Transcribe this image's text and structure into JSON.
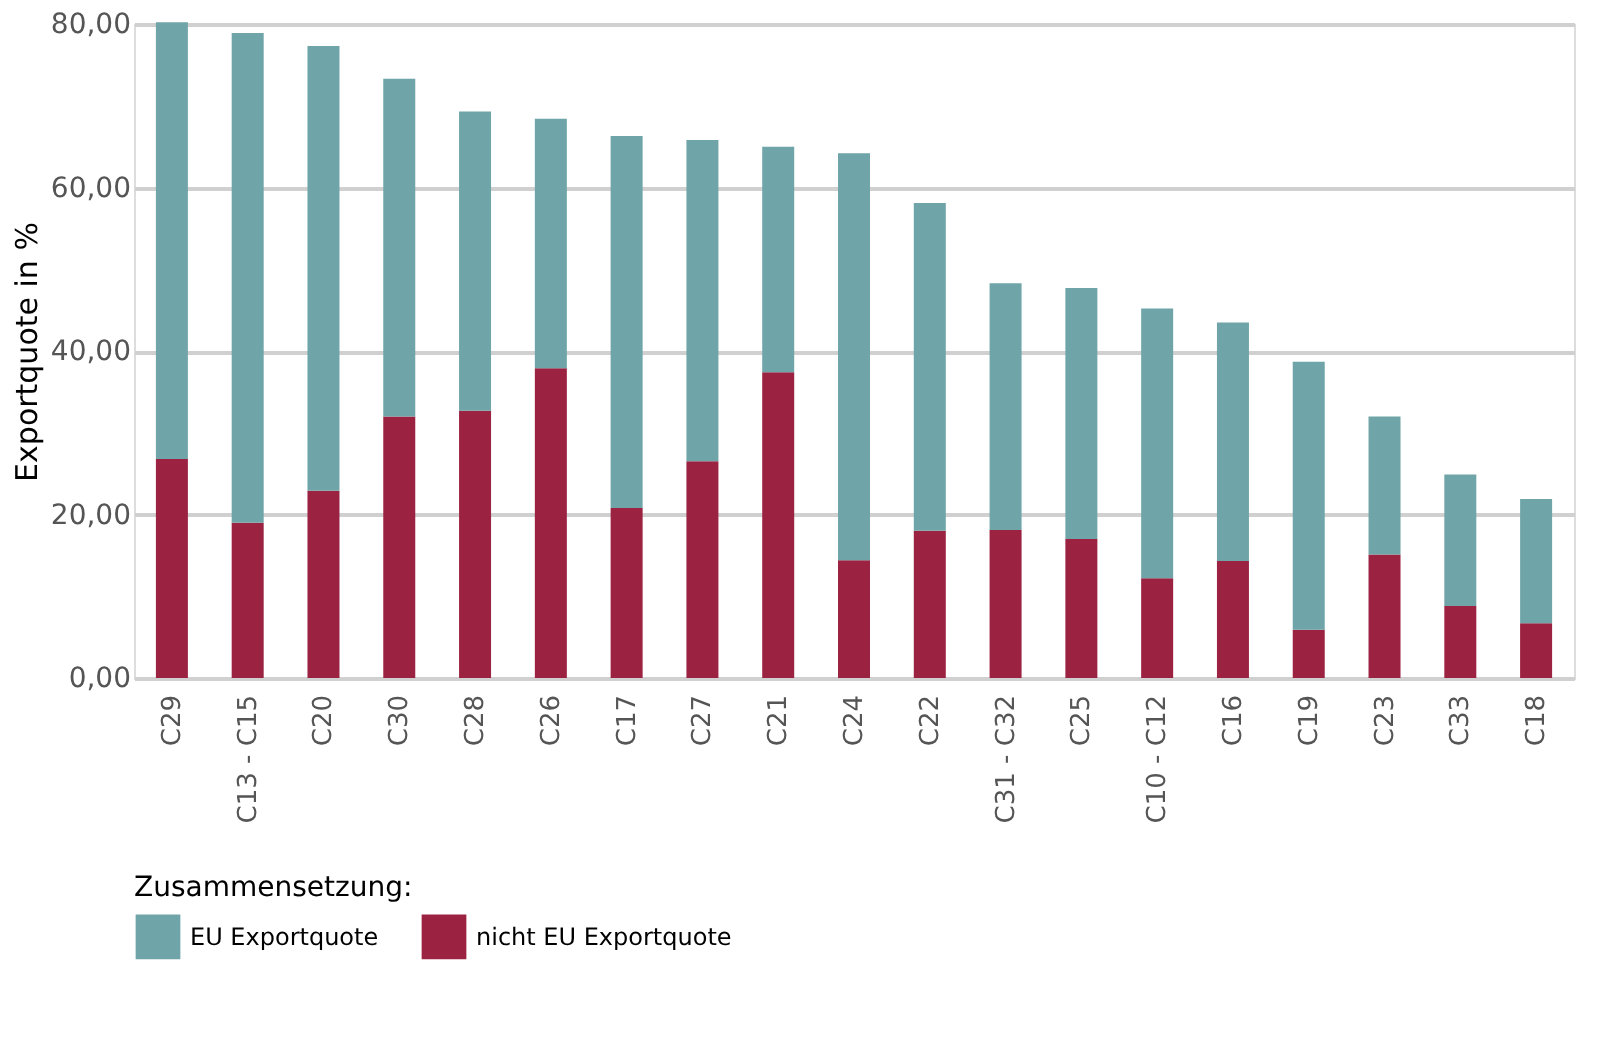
{
  "chart_data": {
    "type": "bar",
    "stacked": true,
    "ylabel": "Exportquote in %",
    "legend_title": "Zusammensetzung:",
    "legend": "bottom",
    "grid": "y",
    "categories": [
      "C29",
      "C13 - C15",
      "C20",
      "C30",
      "C28",
      "C26",
      "C17",
      "C27",
      "C21",
      "C24",
      "C22",
      "C31 - C32",
      "C25",
      "C10 - C12",
      "C16",
      "C19",
      "C23",
      "C33",
      "C18"
    ],
    "series": [
      {
        "name": "nicht EU Exportquote",
        "color": "#9c2242",
        "values": [
          26.8,
          19.0,
          22.9,
          32.0,
          32.7,
          37.9,
          20.8,
          26.5,
          37.4,
          14.4,
          18.0,
          18.1,
          17.0,
          12.2,
          14.3,
          5.9,
          15.1,
          8.8,
          6.7
        ]
      },
      {
        "name": "EU Exportquote",
        "color": "#6fa5a8",
        "values": [
          53.4,
          59.9,
          54.4,
          41.3,
          36.6,
          30.5,
          45.5,
          39.3,
          27.6,
          49.8,
          40.1,
          30.2,
          30.7,
          33.0,
          29.2,
          32.8,
          16.9,
          16.1,
          15.2
        ]
      }
    ],
    "ylim": [
      0,
      80
    ],
    "yticks": [
      {
        "value": 0,
        "label": "0,00"
      },
      {
        "value": 20,
        "label": "20,00"
      },
      {
        "value": 40,
        "label": "40,00"
      },
      {
        "value": 60,
        "label": "60,00"
      },
      {
        "value": 80,
        "label": "80,00"
      }
    ]
  }
}
